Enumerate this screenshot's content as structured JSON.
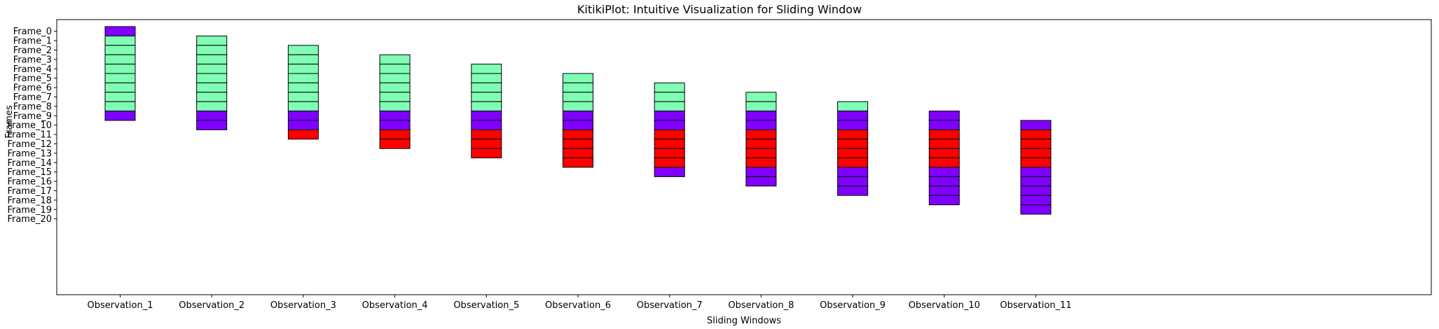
{
  "chart_data": {
    "type": "heatmap",
    "title": "KitikiPlot: Intuitive Visualization for Sliding Window",
    "xlabel": "Sliding Windows",
    "ylabel": "Frames",
    "categories": [
      "Observation_1",
      "Observation_2",
      "Observation_3",
      "Observation_4",
      "Observation_5",
      "Observation_6",
      "Observation_7",
      "Observation_8",
      "Observation_9",
      "Observation_10",
      "Observation_11"
    ],
    "frames": [
      "Frame_0",
      "Frame_1",
      "Frame_2",
      "Frame_3",
      "Frame_4",
      "Frame_5",
      "Frame_6",
      "Frame_7",
      "Frame_8",
      "Frame_9",
      "Frame_10",
      "Frame_11",
      "Frame_12",
      "Frame_13",
      "Frame_14",
      "Frame_15",
      "Frame_16",
      "Frame_17",
      "Frame_18",
      "Frame_19",
      "Frame_20"
    ],
    "window_size": 10,
    "colors": {
      "purple": "#8000ff",
      "green": "#80ffb4",
      "red": "#ff0000"
    },
    "cells": [
      [
        "purple",
        "green",
        "green",
        "green",
        "green",
        "green",
        "green",
        "green",
        "green",
        "purple"
      ],
      [
        "green",
        "green",
        "green",
        "green",
        "green",
        "green",
        "green",
        "green",
        "purple",
        "purple"
      ],
      [
        "green",
        "green",
        "green",
        "green",
        "green",
        "green",
        "green",
        "purple",
        "purple",
        "red"
      ],
      [
        "green",
        "green",
        "green",
        "green",
        "green",
        "green",
        "purple",
        "purple",
        "red",
        "red"
      ],
      [
        "green",
        "green",
        "green",
        "green",
        "green",
        "purple",
        "purple",
        "red",
        "red",
        "red"
      ],
      [
        "green",
        "green",
        "green",
        "green",
        "purple",
        "purple",
        "red",
        "red",
        "red",
        "red"
      ],
      [
        "green",
        "green",
        "green",
        "purple",
        "purple",
        "red",
        "red",
        "red",
        "red",
        "purple"
      ],
      [
        "green",
        "green",
        "purple",
        "purple",
        "red",
        "red",
        "red",
        "red",
        "purple",
        "purple"
      ],
      [
        "green",
        "purple",
        "purple",
        "red",
        "red",
        "red",
        "red",
        "purple",
        "purple",
        "purple"
      ],
      [
        "purple",
        "purple",
        "red",
        "red",
        "red",
        "red",
        "purple",
        "purple",
        "purple",
        "purple"
      ],
      [
        "purple",
        "red",
        "red",
        "red",
        "red",
        "purple",
        "purple",
        "purple",
        "purple",
        "purple"
      ]
    ]
  }
}
